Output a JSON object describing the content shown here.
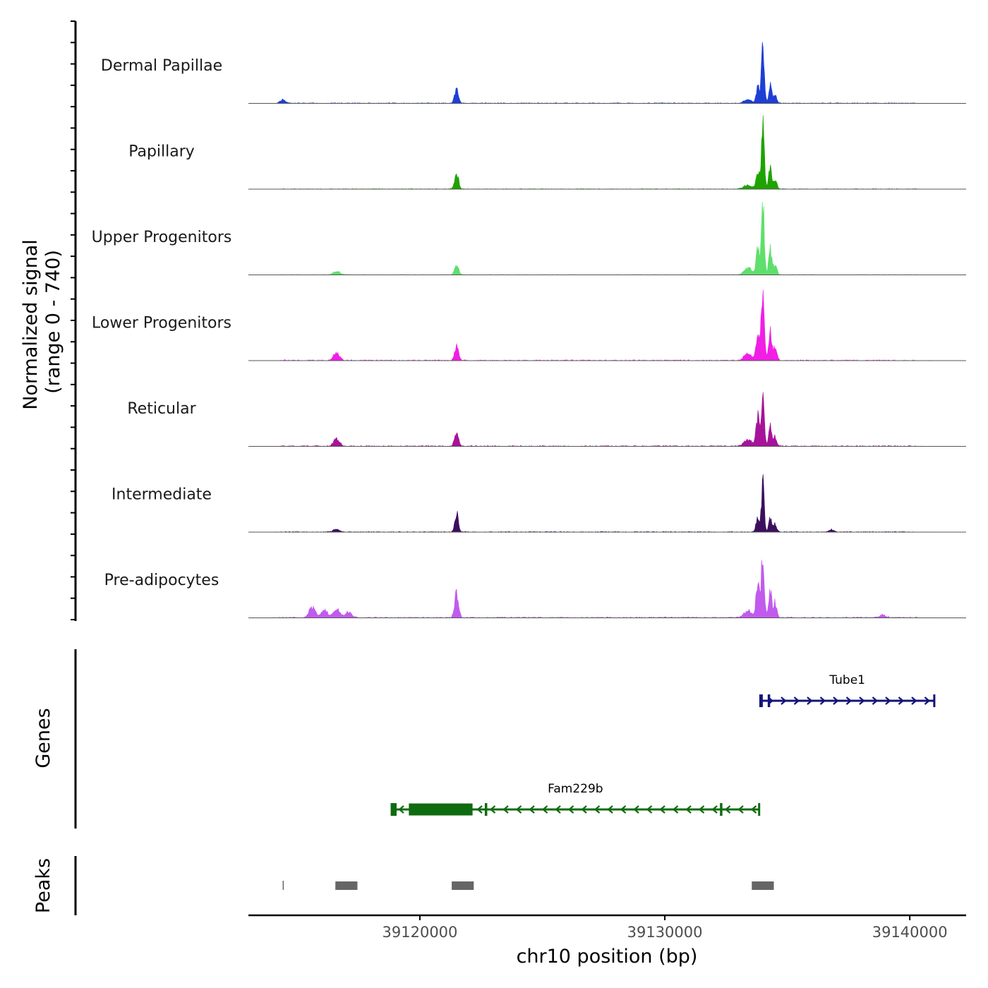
{
  "chart_data": {
    "type": "area",
    "chromosome": "chr10",
    "xlabel": "chr10 position (bp)",
    "xlim": [
      39113000,
      39142300
    ],
    "xticks": [
      39120000,
      39130000,
      39140000
    ],
    "xtick_labels": [
      "39120000",
      "39130000",
      "39140000"
    ],
    "coverage_ylabel_line1": "Normalized signal",
    "coverage_ylabel_line2": "(range 0 - 740)",
    "ylim": [
      0,
      740
    ],
    "genes_ylabel": "Genes",
    "peaks_ylabel": "Peaks",
    "tracks": [
      {
        "name": "Dermal Papillae",
        "color": "#1e3fd6",
        "peaks": [
          [
            39114400,
            45,
            120
          ],
          [
            39121500,
            180,
            80
          ],
          [
            39134000,
            690,
            60
          ],
          [
            39133800,
            210,
            70
          ],
          [
            39134300,
            250,
            60
          ],
          [
            39134500,
            120,
            70
          ],
          [
            39133400,
            50,
            150
          ]
        ],
        "noise": 8
      },
      {
        "name": "Papillary",
        "color": "#1ea300",
        "peaks": [
          [
            39121500,
            200,
            80
          ],
          [
            39134000,
            820,
            60
          ],
          [
            39133800,
            230,
            70
          ],
          [
            39134300,
            280,
            60
          ],
          [
            39134500,
            130,
            70
          ],
          [
            39133400,
            60,
            160
          ]
        ],
        "noise": 6
      },
      {
        "name": "Upper Progenitors",
        "color": "#5fdf6c",
        "peaks": [
          [
            39116600,
            40,
            150
          ],
          [
            39121500,
            140,
            80
          ],
          [
            39134000,
            930,
            60
          ],
          [
            39133800,
            330,
            70
          ],
          [
            39134300,
            350,
            60
          ],
          [
            39134500,
            150,
            70
          ],
          [
            39133400,
            90,
            160
          ]
        ],
        "noise": 6
      },
      {
        "name": "Lower Progenitors",
        "color": "#f11ee5",
        "peaks": [
          [
            39116600,
            100,
            120
          ],
          [
            39121500,
            190,
            80
          ],
          [
            39134000,
            1000,
            60
          ],
          [
            39133800,
            330,
            70
          ],
          [
            39134300,
            380,
            60
          ],
          [
            39134500,
            190,
            70
          ],
          [
            39133400,
            90,
            160
          ]
        ],
        "noise": 10
      },
      {
        "name": "Reticular",
        "color": "#a6139a",
        "peaks": [
          [
            39116600,
            100,
            120
          ],
          [
            39121500,
            180,
            80
          ],
          [
            39134000,
            680,
            60
          ],
          [
            39133800,
            400,
            70
          ],
          [
            39134300,
            250,
            60
          ],
          [
            39134500,
            120,
            70
          ],
          [
            39133400,
            90,
            160
          ]
        ],
        "noise": 10
      },
      {
        "name": "Intermediate",
        "color": "#3b0f5e",
        "peaks": [
          [
            39116600,
            45,
            120
          ],
          [
            39121500,
            260,
            70
          ],
          [
            39134000,
            650,
            55
          ],
          [
            39133800,
            210,
            70
          ],
          [
            39134300,
            200,
            60
          ],
          [
            39134500,
            100,
            70
          ],
          [
            39136800,
            30,
            100
          ]
        ],
        "noise": 8
      },
      {
        "name": "Pre-adipocytes",
        "color": "#c05bee",
        "peaks": [
          [
            39115600,
            130,
            130
          ],
          [
            39116100,
            95,
            130
          ],
          [
            39116600,
            110,
            130
          ],
          [
            39117100,
            75,
            130
          ],
          [
            39121500,
            330,
            80
          ],
          [
            39134000,
            880,
            60
          ],
          [
            39133800,
            480,
            70
          ],
          [
            39134300,
            370,
            60
          ],
          [
            39134500,
            200,
            70
          ],
          [
            39133400,
            90,
            160
          ],
          [
            39138900,
            35,
            120
          ]
        ],
        "noise": 12
      }
    ],
    "genes": [
      {
        "name": "Tube1",
        "color": "#14147a",
        "start": 39133900,
        "end": 39141000,
        "strand": "+",
        "exons": [
          [
            39133900,
            39134000
          ],
          [
            39134200,
            39134300
          ]
        ]
      },
      {
        "name": "Fam229b",
        "color": "#0f6b0f",
        "start": 39118850,
        "end": 39133850,
        "strand": "-",
        "exons": [
          [
            39118850,
            39119050
          ],
          [
            39119550,
            39122150
          ],
          [
            39122650,
            39122750
          ],
          [
            39132250,
            39132350
          ]
        ]
      }
    ],
    "peaks": [
      [
        39114400,
        39114450
      ],
      [
        39116550,
        39117450
      ],
      [
        39121300,
        39122200
      ],
      [
        39133550,
        39134450
      ]
    ]
  }
}
